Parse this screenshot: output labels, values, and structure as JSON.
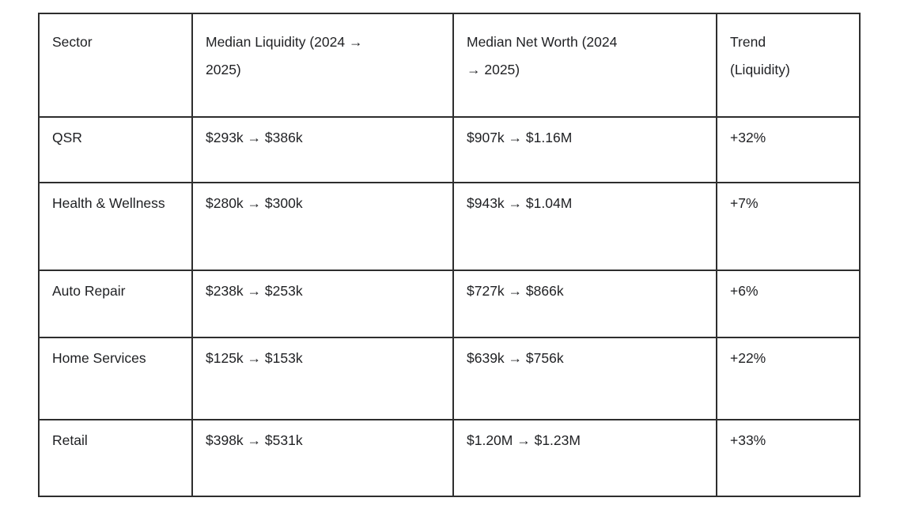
{
  "table": {
    "columns": [
      {
        "label": "Sector"
      },
      {
        "label": "Median Liquidity (2024 → 2025)"
      },
      {
        "label": "Median Net Worth (2024 → 2025)"
      },
      {
        "label": "Trend (Liquidity)"
      }
    ],
    "rows": [
      {
        "sector": "QSR",
        "liquidity": "$293k → $386k",
        "net_worth": "$907k → $1.16M",
        "trend": "+32%"
      },
      {
        "sector": "Health & Wellness",
        "liquidity": "$280k → $300k",
        "net_worth": "$943k → $1.04M",
        "trend": "+7%"
      },
      {
        "sector": "Auto Repair",
        "liquidity": "$238k → $253k",
        "net_worth": "$727k → $866k",
        "trend": "+6%"
      },
      {
        "sector": "Home Services",
        "liquidity": "$125k → $153k",
        "net_worth": "$639k → $756k",
        "trend": "+22%"
      },
      {
        "sector": "Retail",
        "liquidity": "$398k → $531k",
        "net_worth": "$1.20M → $1.23M",
        "trend": "+33%"
      }
    ]
  },
  "colors": {
    "border": "#2e2e2e",
    "text": "#1f2023",
    "background": "#ffffff"
  }
}
